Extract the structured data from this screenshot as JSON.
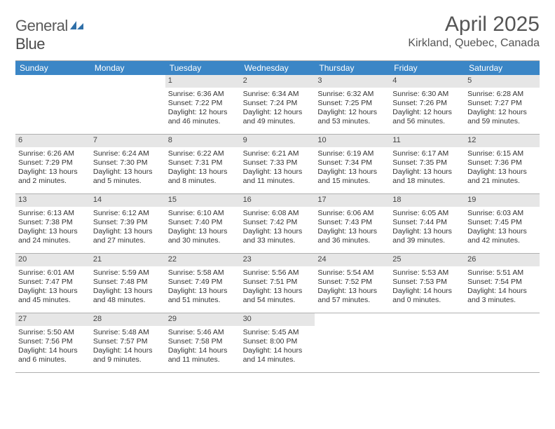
{
  "logo": {
    "text1": "General",
    "text2": "Blue"
  },
  "title": "April 2025",
  "location": "Kirkland, Quebec, Canada",
  "colors": {
    "header_bg": "#3b86c6",
    "header_text": "#ffffff",
    "date_bg": "#e6e6e6",
    "border": "#b0b0b0",
    "text": "#333333",
    "title_text": "#555555"
  },
  "day_headers": [
    "Sunday",
    "Monday",
    "Tuesday",
    "Wednesday",
    "Thursday",
    "Friday",
    "Saturday"
  ],
  "weeks": [
    [
      {
        "n": "",
        "sr": "",
        "ss": "",
        "dl": ""
      },
      {
        "n": "",
        "sr": "",
        "ss": "",
        "dl": ""
      },
      {
        "n": "1",
        "sr": "Sunrise: 6:36 AM",
        "ss": "Sunset: 7:22 PM",
        "dl": "Daylight: 12 hours and 46 minutes."
      },
      {
        "n": "2",
        "sr": "Sunrise: 6:34 AM",
        "ss": "Sunset: 7:24 PM",
        "dl": "Daylight: 12 hours and 49 minutes."
      },
      {
        "n": "3",
        "sr": "Sunrise: 6:32 AM",
        "ss": "Sunset: 7:25 PM",
        "dl": "Daylight: 12 hours and 53 minutes."
      },
      {
        "n": "4",
        "sr": "Sunrise: 6:30 AM",
        "ss": "Sunset: 7:26 PM",
        "dl": "Daylight: 12 hours and 56 minutes."
      },
      {
        "n": "5",
        "sr": "Sunrise: 6:28 AM",
        "ss": "Sunset: 7:27 PM",
        "dl": "Daylight: 12 hours and 59 minutes."
      }
    ],
    [
      {
        "n": "6",
        "sr": "Sunrise: 6:26 AM",
        "ss": "Sunset: 7:29 PM",
        "dl": "Daylight: 13 hours and 2 minutes."
      },
      {
        "n": "7",
        "sr": "Sunrise: 6:24 AM",
        "ss": "Sunset: 7:30 PM",
        "dl": "Daylight: 13 hours and 5 minutes."
      },
      {
        "n": "8",
        "sr": "Sunrise: 6:22 AM",
        "ss": "Sunset: 7:31 PM",
        "dl": "Daylight: 13 hours and 8 minutes."
      },
      {
        "n": "9",
        "sr": "Sunrise: 6:21 AM",
        "ss": "Sunset: 7:33 PM",
        "dl": "Daylight: 13 hours and 11 minutes."
      },
      {
        "n": "10",
        "sr": "Sunrise: 6:19 AM",
        "ss": "Sunset: 7:34 PM",
        "dl": "Daylight: 13 hours and 15 minutes."
      },
      {
        "n": "11",
        "sr": "Sunrise: 6:17 AM",
        "ss": "Sunset: 7:35 PM",
        "dl": "Daylight: 13 hours and 18 minutes."
      },
      {
        "n": "12",
        "sr": "Sunrise: 6:15 AM",
        "ss": "Sunset: 7:36 PM",
        "dl": "Daylight: 13 hours and 21 minutes."
      }
    ],
    [
      {
        "n": "13",
        "sr": "Sunrise: 6:13 AM",
        "ss": "Sunset: 7:38 PM",
        "dl": "Daylight: 13 hours and 24 minutes."
      },
      {
        "n": "14",
        "sr": "Sunrise: 6:12 AM",
        "ss": "Sunset: 7:39 PM",
        "dl": "Daylight: 13 hours and 27 minutes."
      },
      {
        "n": "15",
        "sr": "Sunrise: 6:10 AM",
        "ss": "Sunset: 7:40 PM",
        "dl": "Daylight: 13 hours and 30 minutes."
      },
      {
        "n": "16",
        "sr": "Sunrise: 6:08 AM",
        "ss": "Sunset: 7:42 PM",
        "dl": "Daylight: 13 hours and 33 minutes."
      },
      {
        "n": "17",
        "sr": "Sunrise: 6:06 AM",
        "ss": "Sunset: 7:43 PM",
        "dl": "Daylight: 13 hours and 36 minutes."
      },
      {
        "n": "18",
        "sr": "Sunrise: 6:05 AM",
        "ss": "Sunset: 7:44 PM",
        "dl": "Daylight: 13 hours and 39 minutes."
      },
      {
        "n": "19",
        "sr": "Sunrise: 6:03 AM",
        "ss": "Sunset: 7:45 PM",
        "dl": "Daylight: 13 hours and 42 minutes."
      }
    ],
    [
      {
        "n": "20",
        "sr": "Sunrise: 6:01 AM",
        "ss": "Sunset: 7:47 PM",
        "dl": "Daylight: 13 hours and 45 minutes."
      },
      {
        "n": "21",
        "sr": "Sunrise: 5:59 AM",
        "ss": "Sunset: 7:48 PM",
        "dl": "Daylight: 13 hours and 48 minutes."
      },
      {
        "n": "22",
        "sr": "Sunrise: 5:58 AM",
        "ss": "Sunset: 7:49 PM",
        "dl": "Daylight: 13 hours and 51 minutes."
      },
      {
        "n": "23",
        "sr": "Sunrise: 5:56 AM",
        "ss": "Sunset: 7:51 PM",
        "dl": "Daylight: 13 hours and 54 minutes."
      },
      {
        "n": "24",
        "sr": "Sunrise: 5:54 AM",
        "ss": "Sunset: 7:52 PM",
        "dl": "Daylight: 13 hours and 57 minutes."
      },
      {
        "n": "25",
        "sr": "Sunrise: 5:53 AM",
        "ss": "Sunset: 7:53 PM",
        "dl": "Daylight: 14 hours and 0 minutes."
      },
      {
        "n": "26",
        "sr": "Sunrise: 5:51 AM",
        "ss": "Sunset: 7:54 PM",
        "dl": "Daylight: 14 hours and 3 minutes."
      }
    ],
    [
      {
        "n": "27",
        "sr": "Sunrise: 5:50 AM",
        "ss": "Sunset: 7:56 PM",
        "dl": "Daylight: 14 hours and 6 minutes."
      },
      {
        "n": "28",
        "sr": "Sunrise: 5:48 AM",
        "ss": "Sunset: 7:57 PM",
        "dl": "Daylight: 14 hours and 9 minutes."
      },
      {
        "n": "29",
        "sr": "Sunrise: 5:46 AM",
        "ss": "Sunset: 7:58 PM",
        "dl": "Daylight: 14 hours and 11 minutes."
      },
      {
        "n": "30",
        "sr": "Sunrise: 5:45 AM",
        "ss": "Sunset: 8:00 PM",
        "dl": "Daylight: 14 hours and 14 minutes."
      },
      {
        "n": "",
        "sr": "",
        "ss": "",
        "dl": ""
      },
      {
        "n": "",
        "sr": "",
        "ss": "",
        "dl": ""
      },
      {
        "n": "",
        "sr": "",
        "ss": "",
        "dl": ""
      }
    ]
  ]
}
